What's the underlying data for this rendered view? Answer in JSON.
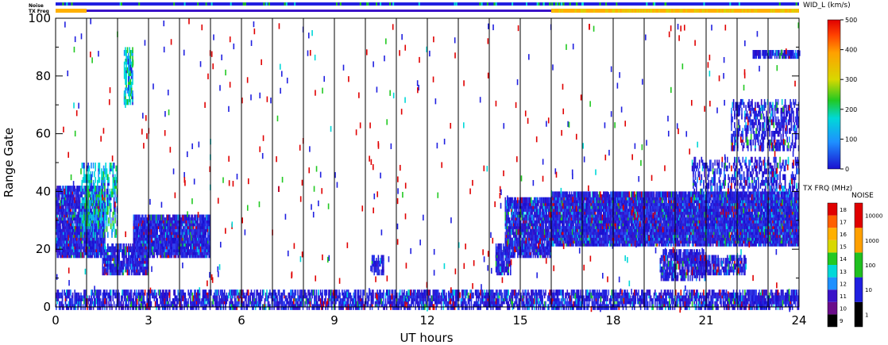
{
  "chart_data": {
    "type": "scatter",
    "xlabel": "UT hours",
    "ylabel": "Range Gate",
    "xlim": [
      0,
      24
    ],
    "ylim": [
      0,
      100
    ],
    "x_ticks": [
      "0",
      "3",
      "6",
      "9",
      "12",
      "15",
      "18",
      "21",
      "24"
    ],
    "y_ticks": [
      "0",
      "20",
      "40",
      "60",
      "80",
      "100"
    ],
    "top_strip_labels": [
      "Noise",
      "TX Freq"
    ],
    "colorbar_wid": {
      "title": "WID_L (km/s)",
      "ticks": [
        "0",
        "100",
        "200",
        "300",
        "400",
        "500"
      ],
      "range": [
        0,
        500
      ]
    },
    "colorbar_txfreq": {
      "title": "TX FRQ (MHz)",
      "ticks": [
        "9",
        "10",
        "11",
        "12",
        "13",
        "14",
        "15",
        "16",
        "17",
        "18"
      ],
      "colors": [
        "#000000",
        "#6a0d8a",
        "#3a12c8",
        "#1e90ff",
        "#00d8d8",
        "#22c922",
        "#d8d800",
        "#ffb000",
        "#ff6000",
        "#e00000"
      ]
    },
    "colorbar_noise": {
      "title": "NOISE",
      "ticks": [
        "1",
        "10",
        "100",
        "1000",
        "10000"
      ],
      "colors": [
        "#000000",
        "#2020e0",
        "#20c020",
        "#ffa000",
        "#e00000"
      ]
    },
    "grid": "vertical lines every hour",
    "echo_regions": [
      {
        "x": [
          0.0,
          24.0
        ],
        "y": [
          0,
          6
        ],
        "density": 0.55,
        "main": "blue"
      },
      {
        "x": [
          0.0,
          1.6
        ],
        "y": [
          18,
          42
        ],
        "density": 0.8,
        "main": "blue"
      },
      {
        "x": [
          0.8,
          2.0
        ],
        "y": [
          25,
          50
        ],
        "density": 0.35,
        "main": "cyan"
      },
      {
        "x": [
          1.5,
          3.0
        ],
        "y": [
          12,
          22
        ],
        "density": 0.75,
        "main": "blue"
      },
      {
        "x": [
          2.5,
          5.0
        ],
        "y": [
          18,
          32
        ],
        "density": 0.85,
        "main": "blue"
      },
      {
        "x": [
          2.2,
          2.5
        ],
        "y": [
          70,
          90
        ],
        "density": 0.5,
        "main": "cyan"
      },
      {
        "x": [
          10.2,
          10.6
        ],
        "y": [
          12,
          18
        ],
        "density": 0.6,
        "main": "blue"
      },
      {
        "x": [
          14.2,
          14.7
        ],
        "y": [
          12,
          22
        ],
        "density": 0.7,
        "main": "blue"
      },
      {
        "x": [
          14.5,
          16.0
        ],
        "y": [
          18,
          38
        ],
        "density": 0.75,
        "main": "blue"
      },
      {
        "x": [
          16.0,
          24.0
        ],
        "y": [
          22,
          40
        ],
        "density": 0.88,
        "main": "blue"
      },
      {
        "x": [
          19.5,
          21.0
        ],
        "y": [
          10,
          20
        ],
        "density": 0.55,
        "main": "blue"
      },
      {
        "x": [
          20.5,
          22.3
        ],
        "y": [
          12,
          18
        ],
        "density": 0.6,
        "main": "blue"
      },
      {
        "x": [
          21.8,
          24.0
        ],
        "y": [
          55,
          72
        ],
        "density": 0.35,
        "main": "blue"
      },
      {
        "x": [
          20.5,
          24.0
        ],
        "y": [
          38,
          52
        ],
        "density": 0.25,
        "main": "blue"
      },
      {
        "x": [
          22.5,
          24.0
        ],
        "y": [
          87,
          89
        ],
        "density": 0.8,
        "main": "blue"
      },
      {
        "x": [
          22.0,
          24.0
        ],
        "y": [
          2,
          4
        ],
        "density": 0.8,
        "main": "blue"
      }
    ]
  }
}
